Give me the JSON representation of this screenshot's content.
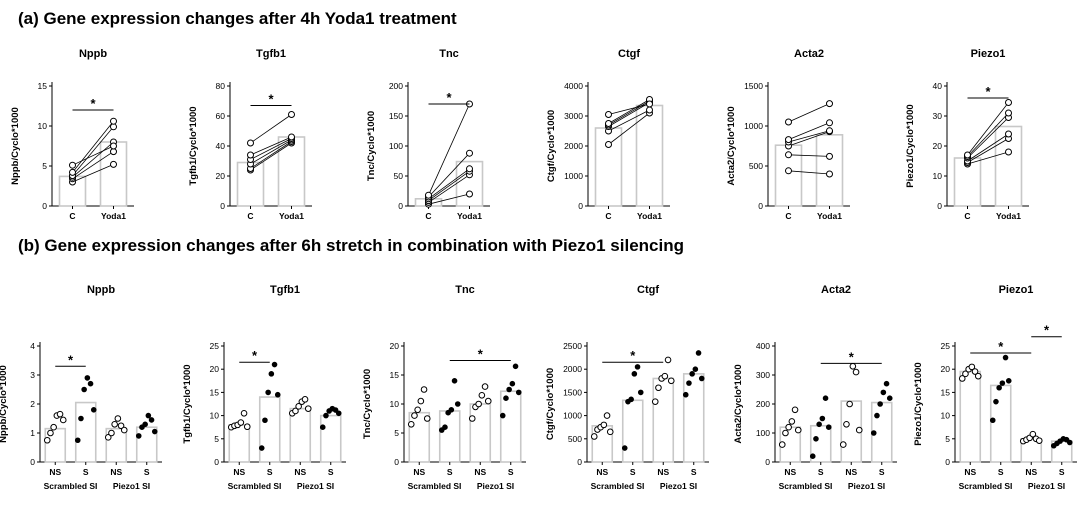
{
  "panel_a": {
    "title": "(a) Gene expression changes after 4h Yoda1 treatment"
  },
  "panel_b": {
    "title": "(b) Gene expression changes after 6h stretch in combination with Piezo1 silencing"
  },
  "chart_data": [
    {
      "panel": "a",
      "type": "bar",
      "title": "Nppb",
      "ylabel": "Nppb/Cyclo*1000",
      "ylim": [
        0,
        15
      ],
      "yticks": [
        0,
        5,
        10,
        15
      ],
      "categories": [
        "C",
        "Yoda1"
      ],
      "bar_values": [
        3.7,
        8.0
      ],
      "pairs": [
        [
          3.0,
          5.2
        ],
        [
          3.4,
          6.8
        ],
        [
          3.6,
          8.0
        ],
        [
          3.8,
          9.9
        ],
        [
          4.2,
          10.6
        ],
        [
          5.1,
          7.5
        ]
      ],
      "significance": [
        {
          "from": 0,
          "to": 1,
          "label": "*",
          "y": 12
        }
      ]
    },
    {
      "panel": "a",
      "type": "bar",
      "title": "Tgfb1",
      "ylabel": "Tgfb1/Cyclo*1000",
      "ylim": [
        0,
        80
      ],
      "yticks": [
        0,
        20,
        40,
        60,
        80
      ],
      "categories": [
        "C",
        "Yoda1"
      ],
      "bar_values": [
        29,
        46
      ],
      "pairs": [
        [
          24,
          42
        ],
        [
          25,
          43
        ],
        [
          28,
          44
        ],
        [
          31,
          45
        ],
        [
          34,
          46
        ],
        [
          42,
          61
        ]
      ],
      "significance": [
        {
          "from": 0,
          "to": 1,
          "label": "*",
          "y": 67
        }
      ]
    },
    {
      "panel": "a",
      "type": "bar",
      "title": "Tnc",
      "ylabel": "Tnc/Cyclo*1000",
      "ylim": [
        0,
        200
      ],
      "yticks": [
        0,
        50,
        100,
        150,
        200
      ],
      "categories": [
        "C",
        "Yoda1"
      ],
      "bar_values": [
        12,
        74
      ],
      "pairs": [
        [
          3,
          20
        ],
        [
          6,
          52
        ],
        [
          9,
          58
        ],
        [
          12,
          62
        ],
        [
          15,
          88
        ],
        [
          18,
          170
        ]
      ],
      "significance": [
        {
          "from": 0,
          "to": 1,
          "label": "*",
          "y": 170
        }
      ]
    },
    {
      "panel": "a",
      "type": "bar",
      "title": "Ctgf",
      "ylabel": "Ctgf/Cyclo*1000",
      "ylim": [
        0,
        4000
      ],
      "yticks": [
        0,
        1000,
        2000,
        3000,
        4000
      ],
      "categories": [
        "C",
        "Yoda1"
      ],
      "bar_values": [
        2600,
        3350
      ],
      "pairs": [
        [
          2050,
          3100
        ],
        [
          2500,
          3200
        ],
        [
          2650,
          3450
        ],
        [
          2700,
          3500
        ],
        [
          2750,
          3550
        ],
        [
          3050,
          3400
        ]
      ],
      "significance": []
    },
    {
      "panel": "a",
      "type": "bar",
      "title": "Acta2",
      "ylabel": "Acta2/Cyclo*1000",
      "ylim": [
        0,
        1500
      ],
      "yticks": [
        0,
        500,
        1000,
        1500
      ],
      "categories": [
        "C",
        "Yoda1"
      ],
      "bar_values": [
        760,
        890
      ],
      "pairs": [
        [
          440,
          400
        ],
        [
          640,
          620
        ],
        [
          750,
          930
        ],
        [
          800,
          940
        ],
        [
          830,
          1040
        ],
        [
          1050,
          1280
        ]
      ],
      "significance": []
    },
    {
      "panel": "a",
      "type": "bar",
      "title": "Piezo1",
      "ylabel": "Piezo1/Cyclo*1000",
      "ylim": [
        0,
        40
      ],
      "yticks": [
        0,
        10,
        20,
        30,
        40
      ],
      "categories": [
        "C",
        "Yoda1"
      ],
      "bar_values": [
        16,
        26.5
      ],
      "pairs": [
        [
          14,
          18
        ],
        [
          14.5,
          22.5
        ],
        [
          15,
          24
        ],
        [
          16,
          29.5
        ],
        [
          16.5,
          31
        ],
        [
          17,
          34.5
        ]
      ],
      "significance": [
        {
          "from": 0,
          "to": 1,
          "label": "*",
          "y": 36
        }
      ]
    },
    {
      "panel": "b",
      "type": "bar",
      "title": "Nppb",
      "ylabel": "Nppb/Cyclo*1000",
      "ylim": [
        0,
        4
      ],
      "yticks": [
        0,
        1,
        2,
        3,
        4
      ],
      "categories": [
        "NS",
        "S",
        "NS",
        "S"
      ],
      "groups": [
        "Scrambled SI",
        "Piezo1 SI"
      ],
      "bar_values": [
        1.15,
        2.05,
        1.15,
        1.2
      ],
      "points": [
        [
          0.75,
          1.0,
          1.2,
          1.6,
          1.65,
          1.45
        ],
        [
          0.75,
          1.5,
          2.5,
          2.9,
          2.7,
          1.8
        ],
        [
          0.85,
          1.0,
          1.3,
          1.5,
          1.25,
          1.1
        ],
        [
          0.9,
          1.2,
          1.3,
          1.6,
          1.45,
          1.05
        ]
      ],
      "significance": [
        {
          "from": 0,
          "to": 1,
          "label": "*",
          "y": 3.3
        }
      ]
    },
    {
      "panel": "b",
      "type": "bar",
      "title": "Tgfb1",
      "ylabel": "Tgfb1/Cyclo*1000",
      "ylim": [
        0,
        25
      ],
      "yticks": [
        0,
        5,
        10,
        15,
        20,
        25
      ],
      "categories": [
        "NS",
        "S",
        "NS",
        "S"
      ],
      "groups": [
        "Scrambled SI",
        "Piezo1 SI"
      ],
      "bar_values": [
        8,
        14,
        11.5,
        10
      ],
      "points": [
        [
          7.5,
          7.8,
          8.0,
          8.5,
          10.5,
          7.6
        ],
        [
          3.0,
          9.0,
          15.0,
          19.0,
          21.0,
          14.5
        ],
        [
          10.5,
          11.0,
          12.0,
          13.0,
          13.5,
          11.5
        ],
        [
          7.5,
          10.0,
          11.0,
          11.5,
          11.2,
          10.5
        ]
      ],
      "significance": [
        {
          "from": 0,
          "to": 1,
          "label": "*",
          "y": 21.5
        }
      ]
    },
    {
      "panel": "b",
      "type": "bar",
      "title": "Tnc",
      "ylabel": "Tnc/Cyclo*1000",
      "ylim": [
        0,
        20
      ],
      "yticks": [
        0,
        5,
        10,
        15,
        20
      ],
      "categories": [
        "NS",
        "S",
        "NS",
        "S"
      ],
      "groups": [
        "Scrambled SI",
        "Piezo1 SI"
      ],
      "bar_values": [
        8.5,
        8.8,
        10,
        12.2
      ],
      "points": [
        [
          6.5,
          8.0,
          9.0,
          10.5,
          12.5,
          7.5
        ],
        [
          5.5,
          6.0,
          8.5,
          9.0,
          14.0,
          10.0
        ],
        [
          7.5,
          9.5,
          10.0,
          11.5,
          13.0,
          10.5
        ],
        [
          8.0,
          11.0,
          12.5,
          13.5,
          16.5,
          12.0
        ]
      ],
      "significance": [
        {
          "from": 1,
          "to": 3,
          "label": "*",
          "y": 17.5
        }
      ]
    },
    {
      "panel": "b",
      "type": "bar",
      "title": "Ctgf",
      "ylabel": "Ctgf/Cyclo*1000",
      "ylim": [
        0,
        2500
      ],
      "yticks": [
        0,
        500,
        1000,
        1500,
        2000,
        2500
      ],
      "categories": [
        "NS",
        "S",
        "NS",
        "S"
      ],
      "groups": [
        "Scrambled SI",
        "Piezo1 SI"
      ],
      "bar_values": [
        780,
        1330,
        1800,
        1900
      ],
      "points": [
        [
          550,
          700,
          750,
          800,
          1000,
          650
        ],
        [
          300,
          1300,
          1350,
          1900,
          2050,
          1500
        ],
        [
          1300,
          1600,
          1800,
          1850,
          2200,
          1750
        ],
        [
          1450,
          1700,
          1900,
          2000,
          2350,
          1800
        ]
      ],
      "significance": [
        {
          "from": 0,
          "to": 2,
          "label": "*",
          "y": 2150
        }
      ]
    },
    {
      "panel": "b",
      "type": "bar",
      "title": "Acta2",
      "ylabel": "Acta2/Cyclo*1000",
      "ylim": [
        0,
        400
      ],
      "yticks": [
        0,
        100,
        200,
        300,
        400
      ],
      "categories": [
        "NS",
        "S",
        "NS",
        "S"
      ],
      "groups": [
        "Scrambled SI",
        "Piezo1 SI"
      ],
      "bar_values": [
        120,
        125,
        210,
        205
      ],
      "points": [
        [
          60,
          100,
          120,
          140,
          180,
          110
        ],
        [
          20,
          80,
          130,
          150,
          220,
          120
        ],
        [
          60,
          130,
          200,
          330,
          310,
          110
        ],
        [
          100,
          160,
          200,
          240,
          270,
          220
        ]
      ],
      "significance": [
        {
          "from": 1,
          "to": 3,
          "label": "*",
          "y": 340
        }
      ]
    },
    {
      "panel": "b",
      "type": "bar",
      "title": "Piezo1",
      "ylabel": "Piezo1/Cyclo*1000",
      "ylim": [
        0,
        25
      ],
      "yticks": [
        0,
        5,
        10,
        15,
        20,
        25
      ],
      "categories": [
        "NS",
        "S",
        "NS",
        "S"
      ],
      "groups": [
        "Scrambled SI",
        "Piezo1 SI"
      ],
      "bar_values": [
        19.5,
        16.5,
        5,
        4.5
      ],
      "points": [
        [
          18,
          19,
          20,
          20.5,
          19.5,
          18.5
        ],
        [
          9,
          13,
          16,
          17,
          22.5,
          17.5
        ],
        [
          4.5,
          4.8,
          5.2,
          6.0,
          5.0,
          4.6
        ],
        [
          3.5,
          4.0,
          4.5,
          5.0,
          4.8,
          4.2
        ]
      ],
      "significance": [
        {
          "from": 0,
          "to": 2,
          "label": "*",
          "y": 23.5
        },
        {
          "from": 2,
          "to": 3,
          "label": "*",
          "y": 27
        }
      ]
    }
  ]
}
